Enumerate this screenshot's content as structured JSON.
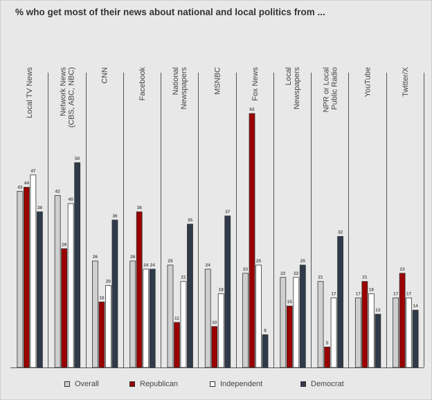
{
  "title": "% who get most of their news about national and local politics from ...",
  "chart_data": {
    "type": "bar",
    "categories": [
      "Local TV News",
      "Network News\n(CBS, ABC, NBC)",
      "CNN",
      "Facebook",
      "National\nNewspapers",
      "MSNBC",
      "Fox News",
      "Local\nNewspapers",
      "NPR or Local\nPublic Radio",
      "YouTube",
      "Twitter/X"
    ],
    "series": [
      {
        "name": "Overall",
        "color": "#cfcfcf",
        "values": [
          43,
          42,
          26,
          26,
          25,
          24,
          23,
          22,
          21,
          17,
          17
        ]
      },
      {
        "name": "Republican",
        "color": "#9b0000",
        "values": [
          44,
          29,
          16,
          38,
          11,
          10,
          62,
          15,
          5,
          21,
          23
        ]
      },
      {
        "name": "Independent",
        "color": "#ffffff",
        "values": [
          47,
          40,
          20,
          24,
          21,
          18,
          25,
          22,
          17,
          18,
          17
        ]
      },
      {
        "name": "Democrat",
        "color": "#2f3a4a",
        "values": [
          38,
          50,
          36,
          24,
          35,
          37,
          8,
          25,
          32,
          13,
          14
        ]
      }
    ],
    "ylim": [
      0,
      62
    ],
    "legend_position": "bottom",
    "grid": false
  }
}
